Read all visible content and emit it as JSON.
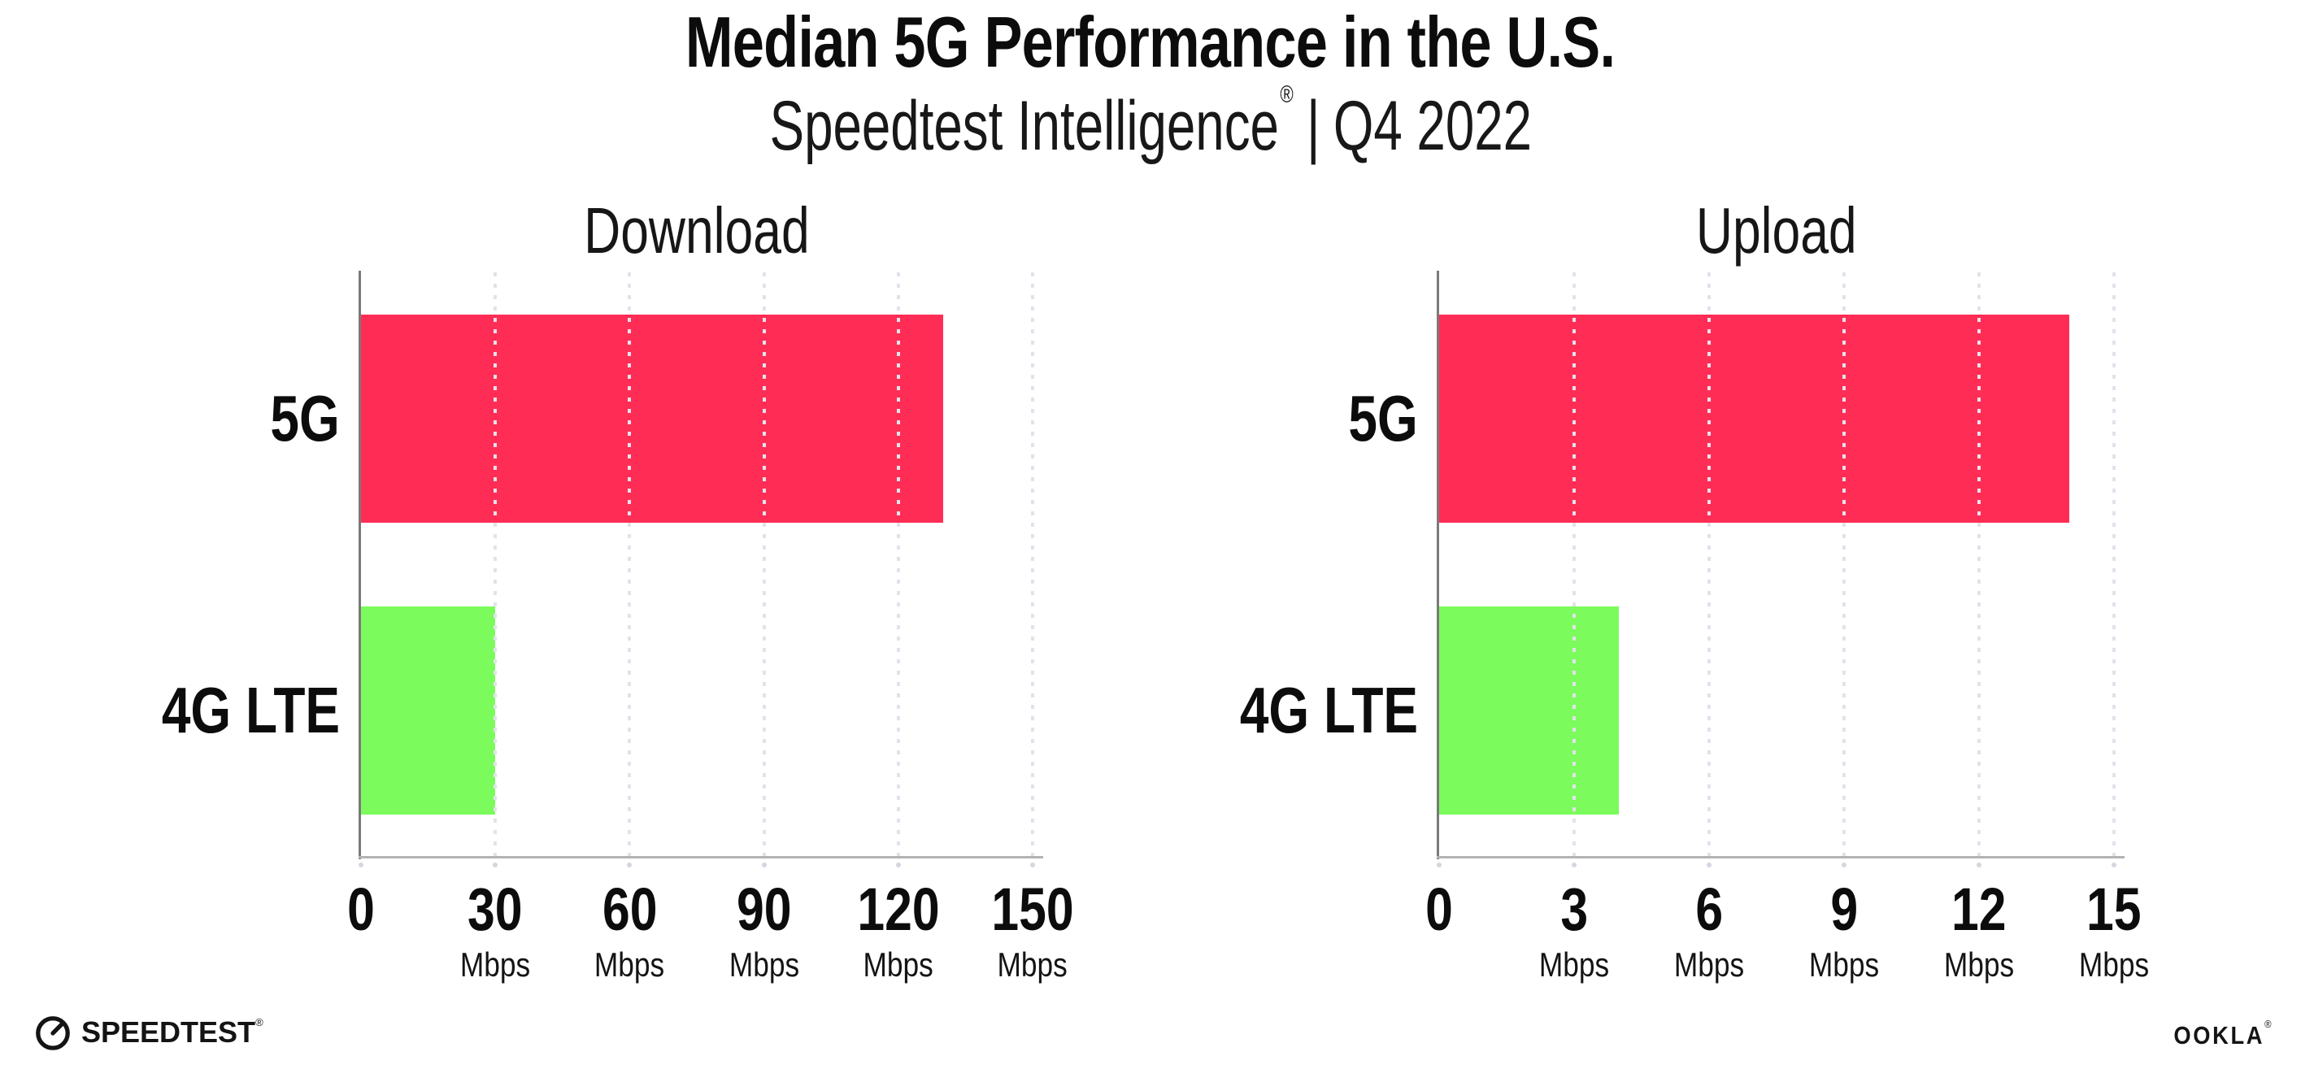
{
  "header": {
    "title": "Median 5G Performance in the U.S.",
    "subtitle_brand": "Speedtest Intelligence",
    "subtitle_mark": "®",
    "subtitle_divider": "|",
    "subtitle_period": "Q4 2022"
  },
  "chart_data": [
    {
      "type": "bar",
      "orientation": "horizontal",
      "title": "Download",
      "categories": [
        "5G",
        "4G LTE"
      ],
      "values": [
        130,
        30
      ],
      "unit": "Mbps",
      "xlim": [
        0,
        150
      ],
      "xticks": [
        0,
        30,
        60,
        90,
        120,
        150
      ],
      "colors": [
        "#FF2D55",
        "#7BFB5C"
      ],
      "grid": "dotted-vertical",
      "legend": "none"
    },
    {
      "type": "bar",
      "orientation": "horizontal",
      "title": "Upload",
      "categories": [
        "5G",
        "4G LTE"
      ],
      "values": [
        14,
        4
      ],
      "unit": "Mbps",
      "xlim": [
        0,
        15
      ],
      "xticks": [
        0,
        3,
        6,
        9,
        12,
        15
      ],
      "colors": [
        "#FF2D55",
        "#7BFB5C"
      ],
      "grid": "dotted-vertical",
      "legend": "none"
    }
  ],
  "footer": {
    "speedtest_label": "SPEEDTEST",
    "speedtest_mark": "®",
    "ookla_label": "OOKLA",
    "ookla_mark": "®"
  },
  "colors": {
    "bar_5g": "#FF2D55",
    "bar_4g_lte": "#7BFB5C",
    "y_axis": "#7a7a7a",
    "x_axis": "#b3b3b3",
    "grid_dot": "#e2e2ec",
    "text": "#121212"
  }
}
